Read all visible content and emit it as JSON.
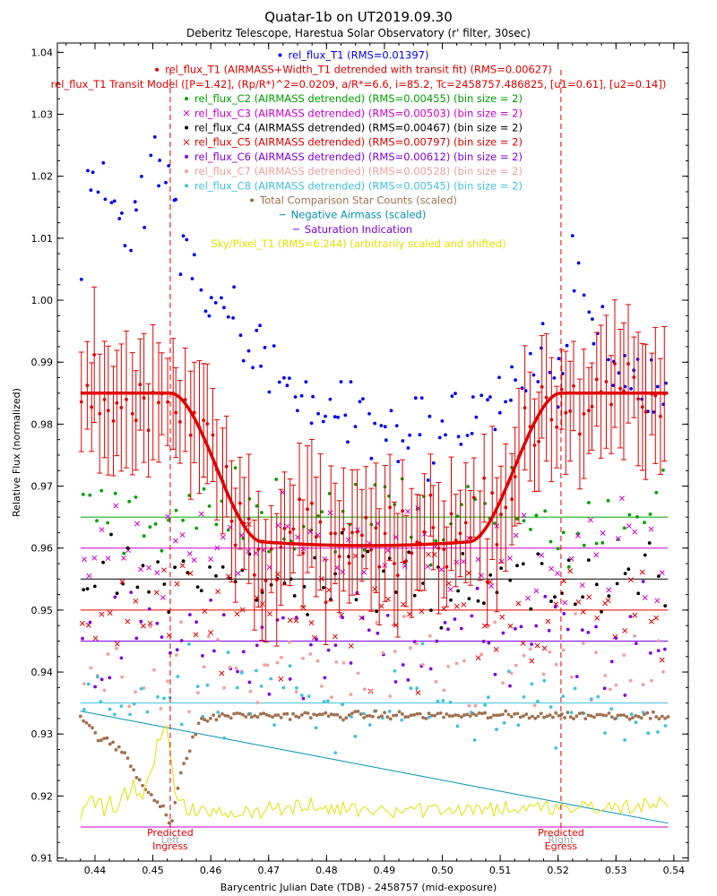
{
  "chart_data": {
    "type": "scatter",
    "title": "Quatar-1b on UT2019.09.30",
    "subtitle": "Deberitz Telescope, Harestua Solar Observatory (r' filter, 30sec)",
    "xlabel": "Barycentric Julian Date (TDB) - 2458757 (mid-exposure)",
    "ylabel": "Relative Flux (normalized)",
    "xlim": [
      0.4335,
      0.5425
    ],
    "ylim": [
      0.9095,
      1.0415
    ],
    "x_ticks": [
      "0.44",
      "0.45",
      "0.46",
      "0.47",
      "0.48",
      "0.49",
      "0.50",
      "0.51",
      "0.52",
      "0.53",
      "0.54"
    ],
    "y_ticks": [
      "0.91",
      "0.92",
      "0.93",
      "0.94",
      "0.95",
      "0.96",
      "0.97",
      "0.98",
      "0.99",
      "1.00",
      "1.01",
      "1.02",
      "1.03",
      "1.04"
    ],
    "legend_position": "top-center",
    "legend": [
      {
        "text": "rel_flux_T1 (RMS=0.01397)",
        "color": "#0000ee",
        "marker": "dot"
      },
      {
        "text": "rel_flux_T1 (AIRMASS+Width_T1 detrended with transit fit) (RMS=0.00627)",
        "color": "#e00000",
        "marker": "dot"
      },
      {
        "text": "rel_flux_T1 Transit Model ([P=1.42], (Rp/R*)^2=0.0209, a/R*=6.6, i=85.2, Tc=2458757.486825, [u1=0.61], [u2=0.14])",
        "color": "#e00000",
        "marker": "none"
      },
      {
        "text": "rel_flux_C2 (AIRMASS detrended) (RMS=0.00455) (bin size = 2)",
        "color": "#00a000",
        "marker": "dot"
      },
      {
        "text": "rel_flux_C3 (AIRMASS detrended) (RMS=0.00503) (bin size = 2)",
        "color": "#cc00cc",
        "marker": "x"
      },
      {
        "text": "rel_flux_C4 (AIRMASS detrended) (RMS=0.00467) (bin size = 2)",
        "color": "#000000",
        "marker": "dot"
      },
      {
        "text": "rel_flux_C5 (AIRMASS detrended) (RMS=0.00797) (bin size = 2)",
        "color": "#e00000",
        "marker": "x"
      },
      {
        "text": "rel_flux_C6 (AIRMASS detrended) (RMS=0.00612) (bin size = 2)",
        "color": "#8000e0",
        "marker": "dot"
      },
      {
        "text": "rel_flux_C7 (AIRMASS detrended) (RMS=0.00528) (bin size = 2)",
        "color": "#f0a0a0",
        "marker": "dot"
      },
      {
        "text": "rel_flux_C8 (AIRMASS detrended) (RMS=0.00545) (bin size = 2)",
        "color": "#40c0e0",
        "marker": "dot"
      },
      {
        "text": "Total Comparison Star Counts (scaled)",
        "color": "#a07050",
        "marker": "dot"
      },
      {
        "text": "Negative Airmass (scaled)",
        "color": "#0090b0",
        "marker": "line"
      },
      {
        "text": "Saturation Indication",
        "color": "#8000e0",
        "marker": "line"
      },
      {
        "text": "Sky/Pixel_T1 (RMS=6.244) (arbitrarily scaled and shifted)",
        "color": "#e0e000",
        "marker": "none"
      }
    ],
    "annotations": [
      {
        "x": 0.453,
        "lines": [
          "Predicted",
          "Ingress"
        ],
        "ghost": "Left"
      },
      {
        "x": 0.5205,
        "lines": [
          "Predicted",
          "Egress"
        ],
        "ghost": "Right"
      }
    ],
    "reference_lines": [
      {
        "name": "C2 baseline",
        "y": 0.965,
        "color": "#00a000"
      },
      {
        "name": "C3 baseline",
        "y": 0.96,
        "color": "#cc00cc"
      },
      {
        "name": "C4 baseline",
        "y": 0.955,
        "color": "#000000"
      },
      {
        "name": "C5 baseline",
        "y": 0.95,
        "color": "#e00000"
      },
      {
        "name": "C6 baseline",
        "y": 0.945,
        "color": "#8000e0"
      },
      {
        "name": "C8 baseline",
        "y": 0.935,
        "color": "#40c0e0"
      },
      {
        "name": "Saturation baseline",
        "y": 0.915,
        "color": "#cc00cc"
      }
    ],
    "airmass_line": {
      "x": [
        0.4375,
        0.539
      ],
      "y": [
        0.9337,
        0.9156
      ],
      "color": "#0090b0"
    },
    "transit_model": {
      "baseline": 0.985,
      "depth": 0.024,
      "ingress_start": 0.453,
      "ingress_end": 0.469,
      "egress_start": 0.5045,
      "egress_end": 0.5205,
      "x_range": [
        0.4375,
        0.539
      ],
      "color": "#e00000"
    },
    "series": [
      {
        "name": "rel_flux_T1 (RMS=0.01397)",
        "kind": "raw_t1",
        "color": "#0000ee",
        "marker": "dot",
        "sample_points": [
          [
            0.4375,
            1.0065
          ],
          [
            0.4385,
            1.0225
          ],
          [
            0.44,
            1.016
          ],
          [
            0.4425,
            1.018
          ],
          [
            0.445,
            1.012
          ],
          [
            0.4475,
            1.016
          ],
          [
            0.4525,
            1.025
          ],
          [
            0.455,
            1.01
          ],
          [
            0.46,
            0.999
          ],
          [
            0.47,
            0.99
          ],
          [
            0.48,
            0.983
          ],
          [
            0.49,
            0.979
          ],
          [
            0.5,
            0.978
          ],
          [
            0.505,
            0.982
          ],
          [
            0.515,
            0.987
          ],
          [
            0.5205,
            0.99
          ],
          [
            0.5225,
            1.006
          ],
          [
            0.53,
            0.987
          ],
          [
            0.539,
            0.985
          ]
        ]
      },
      {
        "name": "rel_flux_T1 (AIRMASS+Width_T1 detrended with transit fit) (RMS=0.00627)",
        "kind": "detrended_t1",
        "color": "#e00000",
        "marker": "dot",
        "errorbars": true,
        "error_halfwidth": 0.0085,
        "sample_points": [
          [
            0.4375,
            0.974
          ],
          [
            0.439,
            0.989
          ],
          [
            0.44,
            0.988
          ],
          [
            0.441,
            0.994
          ],
          [
            0.444,
            0.993
          ],
          [
            0.45,
            0.986
          ],
          [
            0.4525,
            0.986
          ],
          [
            0.454,
            0.983
          ],
          [
            0.456,
            0.98
          ],
          [
            0.46,
            0.965
          ],
          [
            0.465,
            0.961
          ],
          [
            0.47,
            0.959
          ],
          [
            0.475,
            0.959
          ],
          [
            0.48,
            0.956
          ],
          [
            0.485,
            0.963
          ],
          [
            0.488,
            0.956
          ],
          [
            0.49,
            0.956
          ],
          [
            0.495,
            0.96
          ],
          [
            0.5,
            0.959
          ],
          [
            0.505,
            0.962
          ],
          [
            0.51,
            0.968
          ],
          [
            0.515,
            0.974
          ],
          [
            0.52,
            0.989
          ],
          [
            0.525,
            0.989
          ],
          [
            0.53,
            0.994
          ],
          [
            0.535,
            0.983
          ],
          [
            0.539,
            0.991
          ]
        ]
      },
      {
        "name": "rel_flux_C2 (AIRMASS detrended) (RMS=0.00455) (bin size = 2)",
        "kind": "comp",
        "baseline": 0.965,
        "scatter": 0.005,
        "color": "#00a000",
        "marker": "dot",
        "points": 88
      },
      {
        "name": "rel_flux_C3 (AIRMASS detrended) (RMS=0.00503) (bin size = 2)",
        "kind": "comp",
        "baseline": 0.96,
        "scatter": 0.0055,
        "color": "#cc00cc",
        "marker": "x",
        "points": 88
      },
      {
        "name": "rel_flux_C4 (AIRMASS detrended) (RMS=0.00467) (bin size = 2)",
        "kind": "comp",
        "baseline": 0.955,
        "scatter": 0.005,
        "color": "#000000",
        "marker": "dot",
        "points": 88
      },
      {
        "name": "rel_flux_C5 (AIRMASS detrended) (RMS=0.00797) (bin size = 2)",
        "kind": "comp",
        "baseline": 0.95,
        "scatter": 0.0075,
        "color": "#e00000",
        "marker": "x",
        "points": 88
      },
      {
        "name": "rel_flux_C6 (AIRMASS detrended) (RMS=0.00612) (bin size = 2)",
        "kind": "comp",
        "baseline": 0.945,
        "scatter": 0.0062,
        "color": "#8000e0",
        "marker": "dot",
        "points": 88
      },
      {
        "name": "rel_flux_C7 (AIRMASS detrended) (RMS=0.00528) (bin size = 2)",
        "kind": "comp",
        "baseline": 0.94,
        "scatter": 0.0055,
        "color": "#f0a0a0",
        "marker": "dot",
        "points": 88
      },
      {
        "name": "rel_flux_C8 (AIRMASS detrended) (RMS=0.00545) (bin size = 2)",
        "kind": "comp",
        "baseline": 0.935,
        "scatter": 0.0055,
        "color": "#40c0e0",
        "marker": "dot",
        "points": 88
      },
      {
        "name": "Total Comparison Star Counts (scaled)",
        "kind": "counts",
        "color": "#a07050",
        "marker": "dot",
        "sample_points": [
          [
            0.4375,
            0.933
          ],
          [
            0.44,
            0.93
          ],
          [
            0.445,
            0.927
          ],
          [
            0.448,
            0.922
          ],
          [
            0.45,
            0.92
          ],
          [
            0.452,
            0.918
          ],
          [
            0.453,
            0.915
          ],
          [
            0.455,
            0.924
          ],
          [
            0.458,
            0.932
          ],
          [
            0.462,
            0.933
          ],
          [
            0.47,
            0.933
          ],
          [
            0.48,
            0.933
          ],
          [
            0.49,
            0.933
          ],
          [
            0.5,
            0.933
          ],
          [
            0.51,
            0.933
          ],
          [
            0.52,
            0.933
          ],
          [
            0.53,
            0.933
          ],
          [
            0.539,
            0.933
          ]
        ]
      },
      {
        "name": "Sky/Pixel_T1 (RMS=6.244) (arbitrarily scaled and shifted)",
        "kind": "sky",
        "color": "#e0e000",
        "marker": "line",
        "sample_points": [
          [
            0.4375,
            0.918
          ],
          [
            0.44,
            0.919
          ],
          [
            0.444,
            0.918
          ],
          [
            0.446,
            0.922
          ],
          [
            0.448,
            0.919
          ],
          [
            0.45,
            0.925
          ],
          [
            0.452,
            0.932
          ],
          [
            0.453,
            0.926
          ],
          [
            0.454,
            0.92
          ],
          [
            0.455,
            0.92
          ],
          [
            0.456,
            0.918
          ],
          [
            0.46,
            0.917
          ],
          [
            0.47,
            0.918
          ],
          [
            0.48,
            0.918
          ],
          [
            0.49,
            0.918
          ],
          [
            0.5,
            0.918
          ],
          [
            0.51,
            0.918
          ],
          [
            0.52,
            0.918
          ],
          [
            0.53,
            0.918
          ],
          [
            0.539,
            0.919
          ]
        ]
      }
    ]
  }
}
